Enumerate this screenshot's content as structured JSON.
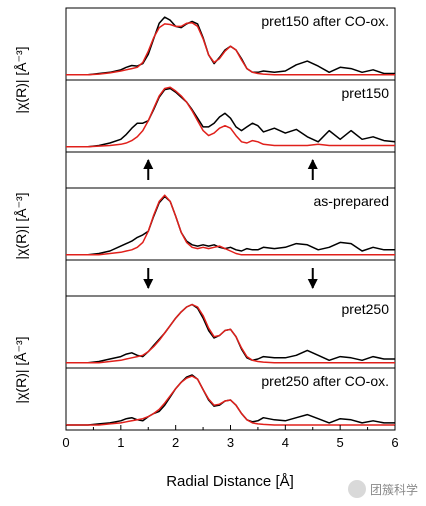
{
  "chart_data": {
    "type": "line",
    "xlabel": "Radial Distance [Å]",
    "xlim": [
      0,
      6
    ],
    "xticks": [
      "0",
      "1",
      "2",
      "3",
      "4",
      "5",
      "6"
    ],
    "y_axis_groups": [
      {
        "label": "|χ(R)| [Å⁻³]",
        "panels": [
          0,
          1
        ]
      },
      {
        "label": "|χ(R)| [Å⁻³]",
        "panels": [
          2
        ]
      },
      {
        "label": "|χ(R)| [Å⁻³]",
        "panels": [
          3,
          4
        ]
      }
    ],
    "series_colors": {
      "experiment": "#000000",
      "fit": "#e0201b"
    },
    "arrow_connectors": [
      {
        "between": [
          "pret150",
          "as-prepared"
        ],
        "x": [
          1.5,
          4.5
        ],
        "direction": "up"
      },
      {
        "between": [
          "as-prepared",
          "pret250"
        ],
        "x": [
          1.5,
          4.5
        ],
        "direction": "down"
      }
    ],
    "panels": [
      {
        "label": "pret150 after CO-ox.",
        "ylim": [
          0,
          1
        ],
        "black": {
          "x": [
            0,
            0.2,
            0.4,
            0.6,
            0.8,
            1.0,
            1.1,
            1.2,
            1.3,
            1.4,
            1.5,
            1.6,
            1.7,
            1.8,
            1.9,
            2.0,
            2.1,
            2.2,
            2.3,
            2.4,
            2.5,
            2.6,
            2.7,
            2.8,
            2.9,
            3.0,
            3.1,
            3.2,
            3.3,
            3.4,
            3.5,
            3.6,
            3.8,
            4.0,
            4.2,
            4.4,
            4.6,
            4.8,
            5.0,
            5.2,
            5.4,
            5.6,
            5.8,
            6.0
          ],
          "y": [
            0.02,
            0.02,
            0.02,
            0.04,
            0.06,
            0.1,
            0.14,
            0.17,
            0.16,
            0.2,
            0.35,
            0.6,
            0.85,
            0.95,
            0.9,
            0.8,
            0.78,
            0.84,
            0.88,
            0.84,
            0.62,
            0.34,
            0.2,
            0.3,
            0.42,
            0.48,
            0.42,
            0.28,
            0.12,
            0.06,
            0.06,
            0.08,
            0.06,
            0.08,
            0.18,
            0.24,
            0.16,
            0.06,
            0.14,
            0.12,
            0.06,
            0.1,
            0.04,
            0.04
          ]
        },
        "red": {
          "x": [
            0,
            0.2,
            0.4,
            0.6,
            0.8,
            1.0,
            1.1,
            1.2,
            1.3,
            1.4,
            1.5,
            1.6,
            1.7,
            1.8,
            1.9,
            2.0,
            2.1,
            2.2,
            2.3,
            2.4,
            2.5,
            2.6,
            2.7,
            2.8,
            2.9,
            3.0,
            3.1,
            3.2,
            3.3,
            3.4,
            3.5,
            3.6,
            3.8,
            4.0,
            4.2,
            4.4,
            4.6,
            4.8,
            5.0,
            5.2,
            5.4,
            5.6,
            5.8,
            6.0
          ],
          "y": [
            0.02,
            0.02,
            0.02,
            0.03,
            0.05,
            0.08,
            0.1,
            0.12,
            0.14,
            0.22,
            0.4,
            0.62,
            0.78,
            0.84,
            0.83,
            0.8,
            0.8,
            0.85,
            0.86,
            0.8,
            0.6,
            0.34,
            0.22,
            0.28,
            0.4,
            0.48,
            0.42,
            0.26,
            0.12,
            0.06,
            0.04,
            0.03,
            0.02,
            0.02,
            0.02,
            0.02,
            0.02,
            0.02,
            0.02,
            0.02,
            0.02,
            0.02,
            0.02,
            0.02
          ]
        }
      },
      {
        "label": "pret150",
        "ylim": [
          0,
          1
        ],
        "black": {
          "x": [
            0,
            0.2,
            0.4,
            0.6,
            0.8,
            1.0,
            1.1,
            1.2,
            1.3,
            1.4,
            1.5,
            1.6,
            1.7,
            1.8,
            1.9,
            2.0,
            2.1,
            2.2,
            2.3,
            2.4,
            2.5,
            2.6,
            2.7,
            2.8,
            2.9,
            3.0,
            3.1,
            3.2,
            3.3,
            3.4,
            3.5,
            3.6,
            3.8,
            4.0,
            4.2,
            4.4,
            4.6,
            4.8,
            5.0,
            5.2,
            5.4,
            5.6,
            5.8,
            6.0
          ],
          "y": [
            0.02,
            0.02,
            0.02,
            0.04,
            0.08,
            0.14,
            0.22,
            0.32,
            0.4,
            0.4,
            0.44,
            0.62,
            0.82,
            0.94,
            0.96,
            0.9,
            0.82,
            0.74,
            0.62,
            0.48,
            0.34,
            0.34,
            0.4,
            0.5,
            0.56,
            0.48,
            0.34,
            0.28,
            0.34,
            0.4,
            0.36,
            0.26,
            0.32,
            0.24,
            0.3,
            0.18,
            0.1,
            0.28,
            0.14,
            0.28,
            0.14,
            0.18,
            0.12,
            0.1
          ]
        },
        "red": {
          "x": [
            0,
            0.2,
            0.4,
            0.6,
            0.8,
            1.0,
            1.1,
            1.2,
            1.3,
            1.4,
            1.5,
            1.6,
            1.7,
            1.8,
            1.9,
            2.0,
            2.1,
            2.2,
            2.3,
            2.4,
            2.5,
            2.6,
            2.7,
            2.8,
            2.9,
            3.0,
            3.1,
            3.2,
            3.3,
            3.4,
            3.5,
            3.6,
            3.8,
            4.0,
            4.2,
            4.4,
            4.6,
            4.8,
            5.0,
            5.2,
            5.4,
            5.6,
            5.8,
            6.0
          ],
          "y": [
            0.02,
            0.02,
            0.02,
            0.03,
            0.04,
            0.06,
            0.08,
            0.12,
            0.18,
            0.28,
            0.44,
            0.64,
            0.84,
            0.96,
            0.98,
            0.92,
            0.84,
            0.74,
            0.6,
            0.44,
            0.28,
            0.2,
            0.24,
            0.32,
            0.36,
            0.32,
            0.2,
            0.1,
            0.08,
            0.12,
            0.1,
            0.06,
            0.04,
            0.04,
            0.04,
            0.04,
            0.06,
            0.04,
            0.04,
            0.04,
            0.04,
            0.04,
            0.04,
            0.04
          ]
        }
      },
      {
        "label": "as-prepared",
        "ylim": [
          0,
          1
        ],
        "black": {
          "x": [
            0,
            0.2,
            0.4,
            0.6,
            0.8,
            1.0,
            1.1,
            1.2,
            1.3,
            1.4,
            1.5,
            1.6,
            1.7,
            1.8,
            1.9,
            2.0,
            2.1,
            2.2,
            2.3,
            2.4,
            2.5,
            2.6,
            2.7,
            2.8,
            2.9,
            3.0,
            3.1,
            3.2,
            3.3,
            3.4,
            3.5,
            3.6,
            3.8,
            4.0,
            4.2,
            4.4,
            4.6,
            4.8,
            5.0,
            5.2,
            5.4,
            5.6,
            5.8,
            6.0
          ],
          "y": [
            0.02,
            0.02,
            0.02,
            0.04,
            0.08,
            0.16,
            0.2,
            0.24,
            0.3,
            0.34,
            0.4,
            0.64,
            0.86,
            0.96,
            0.88,
            0.64,
            0.38,
            0.24,
            0.18,
            0.16,
            0.18,
            0.16,
            0.18,
            0.14,
            0.12,
            0.14,
            0.1,
            0.08,
            0.12,
            0.1,
            0.1,
            0.14,
            0.12,
            0.14,
            0.2,
            0.18,
            0.1,
            0.14,
            0.22,
            0.2,
            0.08,
            0.14,
            0.1,
            0.1
          ]
        },
        "red": {
          "x": [
            0,
            0.2,
            0.4,
            0.6,
            0.8,
            1.0,
            1.1,
            1.2,
            1.3,
            1.4,
            1.5,
            1.6,
            1.7,
            1.8,
            1.9,
            2.0,
            2.1,
            2.2,
            2.3,
            2.4,
            2.5,
            2.6,
            2.7,
            2.8,
            2.9,
            3.0,
            3.1,
            3.2,
            3.3,
            3.4,
            3.5,
            3.6,
            3.8,
            4.0,
            4.2,
            4.4,
            4.6,
            4.8,
            5.0,
            5.2,
            5.4,
            5.6,
            5.8,
            6.0
          ],
          "y": [
            0.02,
            0.02,
            0.02,
            0.02,
            0.04,
            0.06,
            0.08,
            0.1,
            0.14,
            0.22,
            0.4,
            0.66,
            0.88,
            0.98,
            0.88,
            0.64,
            0.38,
            0.22,
            0.14,
            0.12,
            0.14,
            0.12,
            0.14,
            0.16,
            0.12,
            0.08,
            0.04,
            0.02,
            0.02,
            0.02,
            0.02,
            0.02,
            0.02,
            0.02,
            0.02,
            0.02,
            0.02,
            0.02,
            0.02,
            0.02,
            0.02,
            0.02,
            0.02,
            0.02
          ]
        }
      },
      {
        "label": "pret250",
        "ylim": [
          0,
          1
        ],
        "black": {
          "x": [
            0,
            0.2,
            0.4,
            0.6,
            0.8,
            1.0,
            1.1,
            1.2,
            1.3,
            1.4,
            1.5,
            1.6,
            1.7,
            1.8,
            1.9,
            2.0,
            2.1,
            2.2,
            2.3,
            2.4,
            2.5,
            2.6,
            2.7,
            2.8,
            2.9,
            3.0,
            3.1,
            3.2,
            3.3,
            3.4,
            3.5,
            3.6,
            3.8,
            4.0,
            4.2,
            4.4,
            4.6,
            4.8,
            5.0,
            5.2,
            5.4,
            5.6,
            5.8,
            6.0
          ],
          "y": [
            0.02,
            0.02,
            0.02,
            0.04,
            0.08,
            0.12,
            0.16,
            0.18,
            0.14,
            0.12,
            0.2,
            0.3,
            0.4,
            0.5,
            0.62,
            0.74,
            0.84,
            0.92,
            0.96,
            0.9,
            0.74,
            0.54,
            0.42,
            0.46,
            0.54,
            0.56,
            0.44,
            0.24,
            0.1,
            0.06,
            0.08,
            0.12,
            0.1,
            0.1,
            0.14,
            0.22,
            0.14,
            0.06,
            0.12,
            0.1,
            0.06,
            0.12,
            0.08,
            0.08
          ]
        },
        "red": {
          "x": [
            0,
            0.2,
            0.4,
            0.6,
            0.8,
            1.0,
            1.1,
            1.2,
            1.3,
            1.4,
            1.5,
            1.6,
            1.7,
            1.8,
            1.9,
            2.0,
            2.1,
            2.2,
            2.3,
            2.4,
            2.5,
            2.6,
            2.7,
            2.8,
            2.9,
            3.0,
            3.1,
            3.2,
            3.3,
            3.4,
            3.5,
            3.6,
            3.8,
            4.0,
            4.2,
            4.4,
            4.6,
            4.8,
            5.0,
            5.2,
            5.4,
            5.6,
            5.8,
            6.0
          ],
          "y": [
            0.02,
            0.02,
            0.02,
            0.02,
            0.04,
            0.06,
            0.08,
            0.1,
            0.12,
            0.14,
            0.2,
            0.28,
            0.38,
            0.5,
            0.62,
            0.74,
            0.84,
            0.92,
            0.96,
            0.92,
            0.78,
            0.58,
            0.44,
            0.46,
            0.54,
            0.56,
            0.44,
            0.26,
            0.12,
            0.06,
            0.04,
            0.03,
            0.02,
            0.02,
            0.02,
            0.02,
            0.02,
            0.02,
            0.02,
            0.02,
            0.02,
            0.02,
            0.02,
            0.02
          ]
        }
      },
      {
        "label": "pret250 after CO-ox.",
        "ylim": [
          0,
          1
        ],
        "black": {
          "x": [
            0,
            0.2,
            0.4,
            0.6,
            0.8,
            1.0,
            1.1,
            1.2,
            1.3,
            1.4,
            1.5,
            1.6,
            1.7,
            1.8,
            1.9,
            2.0,
            2.1,
            2.2,
            2.3,
            2.4,
            2.5,
            2.6,
            2.7,
            2.8,
            2.9,
            3.0,
            3.1,
            3.2,
            3.3,
            3.4,
            3.5,
            3.6,
            3.8,
            4.0,
            4.2,
            4.4,
            4.6,
            4.8,
            5.0,
            5.2,
            5.4,
            5.6,
            5.8,
            6.0
          ],
          "y": [
            0.02,
            0.02,
            0.02,
            0.04,
            0.06,
            0.1,
            0.14,
            0.16,
            0.12,
            0.1,
            0.18,
            0.24,
            0.28,
            0.4,
            0.56,
            0.72,
            0.84,
            0.94,
            0.98,
            0.9,
            0.7,
            0.5,
            0.38,
            0.4,
            0.48,
            0.5,
            0.4,
            0.24,
            0.12,
            0.08,
            0.1,
            0.16,
            0.12,
            0.1,
            0.16,
            0.22,
            0.14,
            0.06,
            0.14,
            0.12,
            0.06,
            0.1,
            0.06,
            0.06
          ]
        },
        "red": {
          "x": [
            0,
            0.2,
            0.4,
            0.6,
            0.8,
            1.0,
            1.1,
            1.2,
            1.3,
            1.4,
            1.5,
            1.6,
            1.7,
            1.8,
            1.9,
            2.0,
            2.1,
            2.2,
            2.3,
            2.4,
            2.5,
            2.6,
            2.7,
            2.8,
            2.9,
            3.0,
            3.1,
            3.2,
            3.3,
            3.4,
            3.5,
            3.6,
            3.8,
            4.0,
            4.2,
            4.4,
            4.6,
            4.8,
            5.0,
            5.2,
            5.4,
            5.6,
            5.8,
            6.0
          ],
          "y": [
            0.02,
            0.02,
            0.02,
            0.02,
            0.04,
            0.06,
            0.08,
            0.1,
            0.12,
            0.14,
            0.18,
            0.24,
            0.32,
            0.44,
            0.58,
            0.72,
            0.84,
            0.92,
            0.96,
            0.9,
            0.7,
            0.52,
            0.4,
            0.42,
            0.48,
            0.5,
            0.4,
            0.24,
            0.12,
            0.06,
            0.04,
            0.03,
            0.02,
            0.02,
            0.02,
            0.02,
            0.02,
            0.02,
            0.02,
            0.02,
            0.02,
            0.02,
            0.02,
            0.02
          ]
        }
      }
    ]
  },
  "watermark": {
    "text": "团簇科学",
    "icon": "wechat-icon"
  }
}
